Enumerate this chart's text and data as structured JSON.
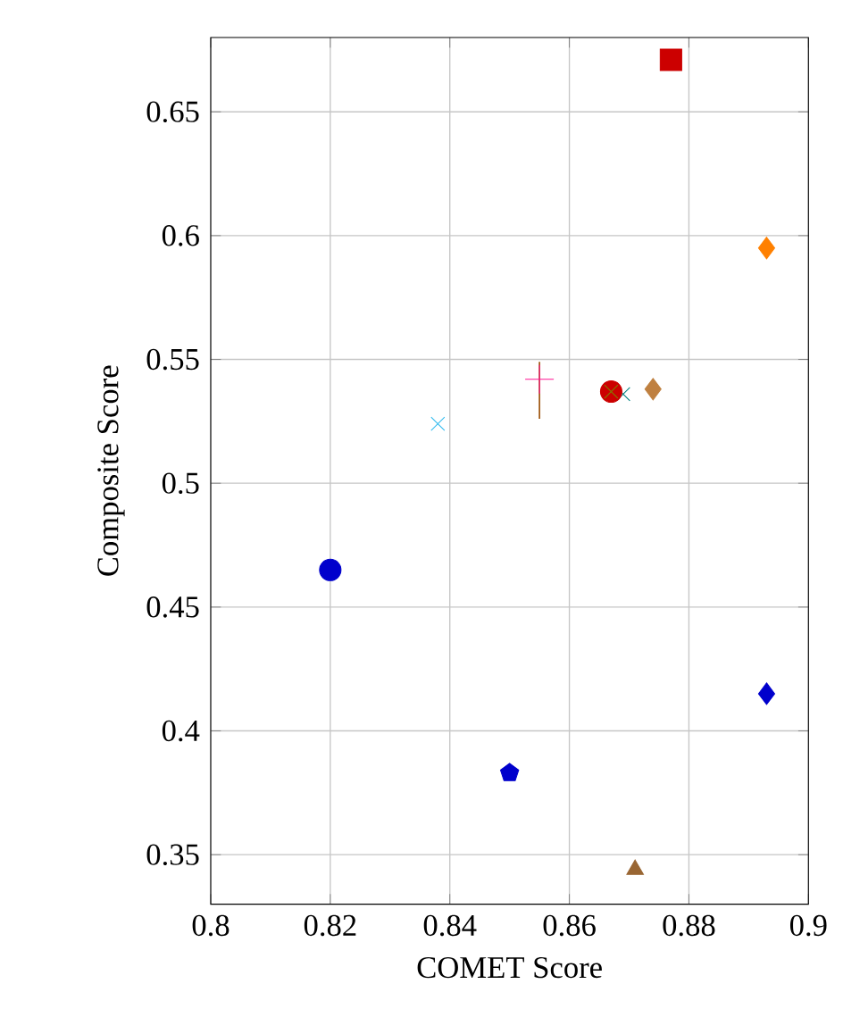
{
  "chart_data": {
    "type": "scatter",
    "xlabel": "COMET Score",
    "ylabel": "Composite Score",
    "xlim": [
      0.8,
      0.9
    ],
    "ylim": [
      0.33,
      0.68
    ],
    "xticks": [
      0.8,
      0.82,
      0.84,
      0.86,
      0.88,
      0.9
    ],
    "yticks": [
      0.35,
      0.4,
      0.45,
      0.5,
      0.55,
      0.6,
      0.65
    ],
    "grid": true,
    "series": [
      {
        "color": "#cc0000",
        "marker": "square",
        "x": [
          0.877
        ],
        "values": [
          0.671
        ]
      },
      {
        "color": "#ff8000",
        "marker": "diamond",
        "x": [
          0.893
        ],
        "values": [
          0.595
        ]
      },
      {
        "type": "line",
        "color": "#994c00",
        "x": [
          0.855,
          0.855
        ],
        "values": [
          0.526,
          0.549
        ]
      },
      {
        "color": "#ff1493",
        "marker": "plus",
        "x": [
          0.855
        ],
        "values": [
          0.542
        ]
      },
      {
        "color": "#33bbee",
        "marker": "cross",
        "x": [
          0.838
        ],
        "values": [
          0.524
        ]
      },
      {
        "color": "#008080",
        "marker": "cross",
        "x": [
          0.869
        ],
        "values": [
          0.536
        ]
      },
      {
        "color": "#cc0000",
        "marker": "circle",
        "x": [
          0.867
        ],
        "values": [
          0.537
        ]
      },
      {
        "color": "#808000",
        "marker": "cross",
        "x": [
          0.867
        ],
        "values": [
          0.537
        ]
      },
      {
        "color": "#bf8040",
        "marker": "diamond",
        "x": [
          0.874
        ],
        "values": [
          0.538
        ]
      },
      {
        "color": "#0000cc",
        "marker": "circle",
        "x": [
          0.82
        ],
        "values": [
          0.465
        ]
      },
      {
        "color": "#0000cc",
        "marker": "diamond",
        "x": [
          0.893
        ],
        "values": [
          0.415
        ]
      },
      {
        "color": "#0000cc",
        "x": [
          0.85
        ],
        "values": [
          0.383
        ]
      },
      {
        "color": "#996633",
        "marker": "triangle",
        "x": [
          0.871
        ],
        "values": [
          0.344
        ]
      }
    ]
  }
}
